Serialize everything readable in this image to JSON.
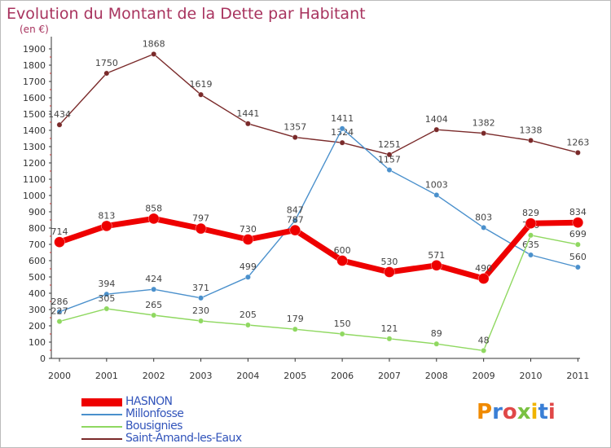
{
  "chart_data": {
    "type": "line",
    "title": "Evolution du Montant de la Dette par Habitant",
    "subtitle": "(en €)",
    "x": [
      "2000",
      "2001",
      "2002",
      "2003",
      "2004",
      "2005",
      "2006",
      "2007",
      "2008",
      "2009",
      "2010",
      "2011"
    ],
    "ylim": [
      0,
      1900
    ],
    "yticks": [
      0,
      100,
      200,
      300,
      400,
      500,
      600,
      700,
      800,
      900,
      1000,
      1100,
      1200,
      1300,
      1400,
      1500,
      1600,
      1700,
      1800,
      1900
    ],
    "grid": false,
    "legend_position": "bottom-left",
    "series": [
      {
        "name": "Saint-Amand-les-Eaux",
        "color": "#7a2a2a",
        "values": [
          1434,
          1750,
          1868,
          1619,
          1441,
          1357,
          1324,
          1251,
          1404,
          1382,
          1338,
          1263
        ]
      },
      {
        "name": "Millonfosse",
        "color": "#4a90cc",
        "values": [
          286,
          394,
          424,
          371,
          499,
          847,
          1411,
          1157,
          1003,
          803,
          635,
          560
        ]
      },
      {
        "name": "Bousignies",
        "color": "#8fd860",
        "values": [
          227,
          305,
          265,
          230,
          205,
          179,
          150,
          121,
          89,
          48,
          756,
          699
        ]
      },
      {
        "name": "HASNON",
        "color": "#ee0000",
        "values": [
          714,
          813,
          858,
          797,
          730,
          787,
          600,
          530,
          571,
          490,
          829,
          834
        ]
      }
    ],
    "legend": [
      {
        "name": "HASNON",
        "color": "#ee0000"
      },
      {
        "name": "Millonfosse",
        "color": "#4a90cc"
      },
      {
        "name": "Bousignies",
        "color": "#8fd860"
      },
      {
        "name": "Saint-Amand-les-Eaux",
        "color": "#7a2a2a"
      }
    ]
  },
  "logo": {
    "text": "Proxiti"
  }
}
